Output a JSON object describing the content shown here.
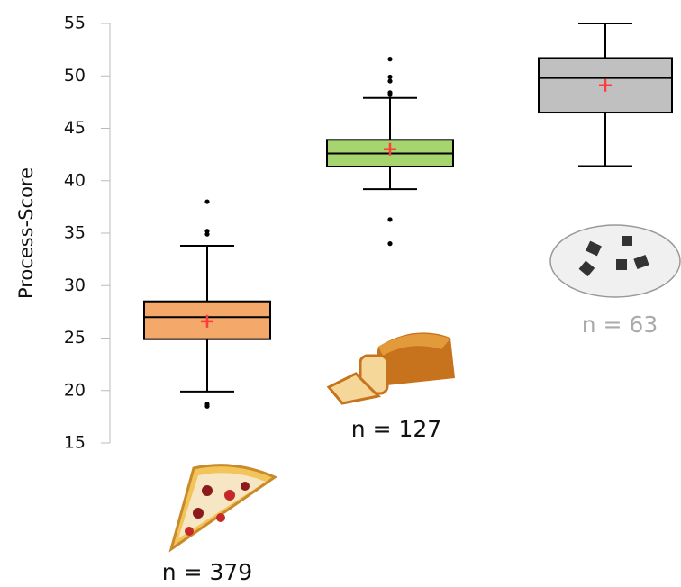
{
  "chart_data": {
    "type": "box",
    "y_label": "Process-Score",
    "ylim": [
      15,
      55
    ],
    "yticks": [
      15,
      20,
      25,
      30,
      35,
      40,
      45,
      50,
      55
    ],
    "boxes": [
      {
        "label": "n = 379",
        "color": "#f4a96a",
        "label_color": "#111111",
        "whisker_low": 19.9,
        "q1": 24.9,
        "median": 27,
        "q3": 28.5,
        "whisker_high": 33.8,
        "mean": 26.6,
        "outliers": [
          38,
          35.2,
          34.9,
          18.7,
          18.5
        ]
      },
      {
        "label": "n = 127",
        "color": "#a6d46f",
        "label_color": "#111111",
        "whisker_low": 39.2,
        "q1": 41.35,
        "median": 42.6,
        "q3": 43.9,
        "whisker_high": 47.9,
        "mean": 43,
        "outliers": [
          51.6,
          49.9,
          49.5,
          48.4,
          48.2,
          36.3,
          34
        ]
      },
      {
        "label": "n = 63",
        "color": "#c0c0c0",
        "label_color": "#aaaaaa",
        "whisker_low": 41.4,
        "q1": 46.5,
        "median": 49.8,
        "q3": 51.7,
        "whisker_high": 55,
        "mean": 49.1,
        "outliers": []
      }
    ]
  }
}
